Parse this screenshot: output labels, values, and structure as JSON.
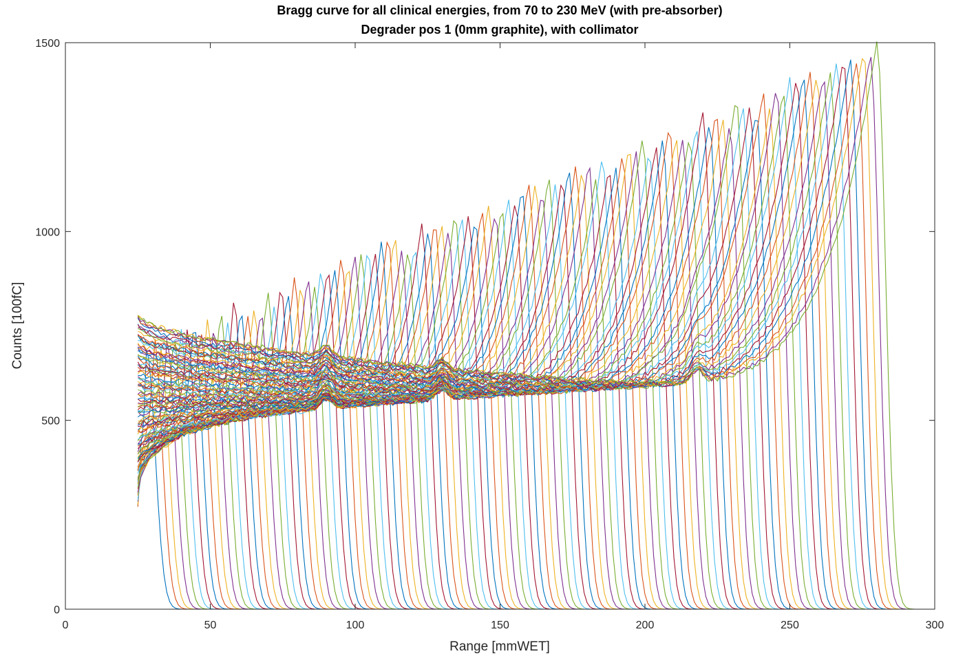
{
  "chart_data": {
    "type": "line",
    "title": "Bragg curve for all clinical energies, from 70 to 230 MeV (with pre-absorber)",
    "subtitle": "Degrader pos 1 (0mm graphite), with collimator",
    "xlabel": "Range [mmWET]",
    "ylabel": "Counts [100fC]",
    "xlim": [
      0,
      300
    ],
    "ylim": [
      0,
      1500
    ],
    "xticks": [
      0,
      50,
      100,
      150,
      200,
      250,
      300
    ],
    "yticks": [
      0,
      500,
      1000,
      1500
    ],
    "grid": false,
    "legend": "none",
    "x_start": 25,
    "sample_step": 1.0,
    "series_count": 110,
    "colors": [
      "#0072BD",
      "#D95319",
      "#EDB120",
      "#7E2F8E",
      "#77AC30",
      "#4DBEEE",
      "#A2142F"
    ],
    "peak_range_first": 28,
    "peak_range_last": 280,
    "entrance_first": 270,
    "entrance_last": 780,
    "peak_first": 700,
    "peak_last": 1470
  }
}
